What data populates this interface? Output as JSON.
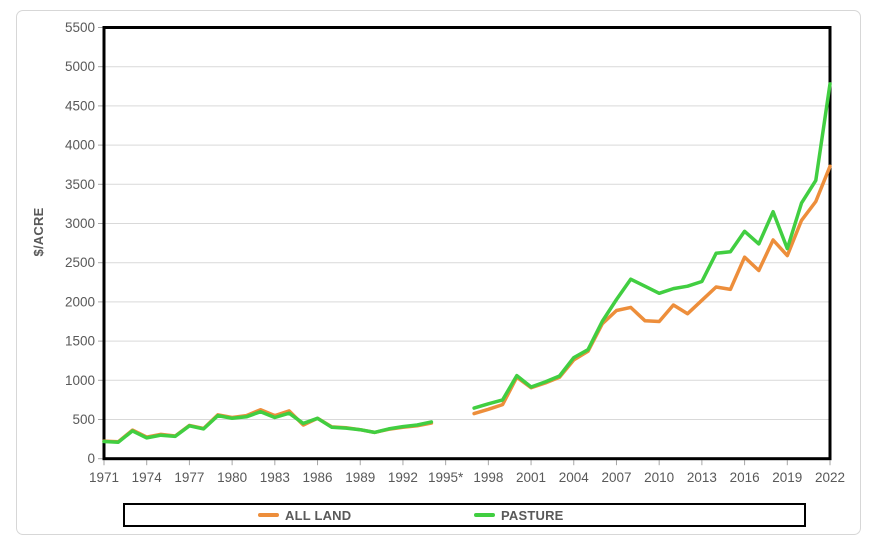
{
  "chart_data": {
    "type": "line",
    "title": "",
    "ylabel": "$/ACRE",
    "ylim": [
      0,
      5500
    ],
    "ytick_step": 500,
    "ytick_labels": [
      "0",
      "500",
      "1000",
      "1500",
      "2000",
      "2500",
      "3000",
      "3500",
      "4000",
      "4500",
      "5000",
      "5500"
    ],
    "xtick_labels": [
      "1971",
      "1974",
      "1977",
      "1980",
      "1983",
      "1986",
      "1989",
      "1992",
      "1995*",
      "1998",
      "2001",
      "2004",
      "2007",
      "2010",
      "2013",
      "2016",
      "2019",
      "2022"
    ],
    "x_range": [
      1971,
      2022
    ],
    "grid": "horizontal",
    "legend_position": "bottom",
    "x": [
      1971,
      1972,
      1973,
      1974,
      1975,
      1976,
      1977,
      1978,
      1979,
      1980,
      1981,
      1982,
      1983,
      1984,
      1985,
      1986,
      1987,
      1988,
      1989,
      1990,
      1991,
      1992,
      1993,
      1994,
      1995,
      1996,
      1997,
      1998,
      1999,
      2000,
      2001,
      2002,
      2003,
      2004,
      2005,
      2006,
      2007,
      2008,
      2009,
      2010,
      2011,
      2012,
      2013,
      2014,
      2015,
      2016,
      2017,
      2018,
      2019,
      2020,
      2021,
      2022
    ],
    "series": [
      {
        "name": "ALL LAND",
        "color": "#ED8E3B",
        "values": [
          225,
          215,
          365,
          275,
          310,
          290,
          425,
          385,
          560,
          525,
          550,
          625,
          550,
          610,
          430,
          515,
          405,
          395,
          370,
          335,
          375,
          400,
          420,
          455,
          null,
          null,
          575,
          630,
          690,
          1040,
          905,
          965,
          1040,
          1260,
          1370,
          1720,
          1890,
          1930,
          1760,
          1750,
          1960,
          1850,
          2020,
          2190,
          2160,
          2570,
          2400,
          2790,
          2590,
          3040,
          3280,
          3730
        ]
      },
      {
        "name": "PASTURE",
        "color": "#41CE41",
        "values": [
          220,
          210,
          355,
          265,
          300,
          285,
          420,
          380,
          550,
          515,
          535,
          600,
          525,
          580,
          450,
          515,
          400,
          390,
          370,
          335,
          380,
          410,
          430,
          470,
          null,
          null,
          645,
          700,
          750,
          1060,
          915,
          980,
          1055,
          1290,
          1390,
          1750,
          2030,
          2290,
          2200,
          2110,
          2170,
          2200,
          2260,
          2620,
          2640,
          2900,
          2740,
          3150,
          2680,
          3260,
          3550,
          4780
        ]
      }
    ],
    "colors": {
      "grid": "#D9D9D9",
      "tick": "#A6A6A6",
      "axis_border": "#000000",
      "text": "#595959"
    }
  },
  "legend": {
    "all_land_label": "ALL LAND",
    "pasture_label": "PASTURE"
  },
  "axis_title": "$/ACRE"
}
